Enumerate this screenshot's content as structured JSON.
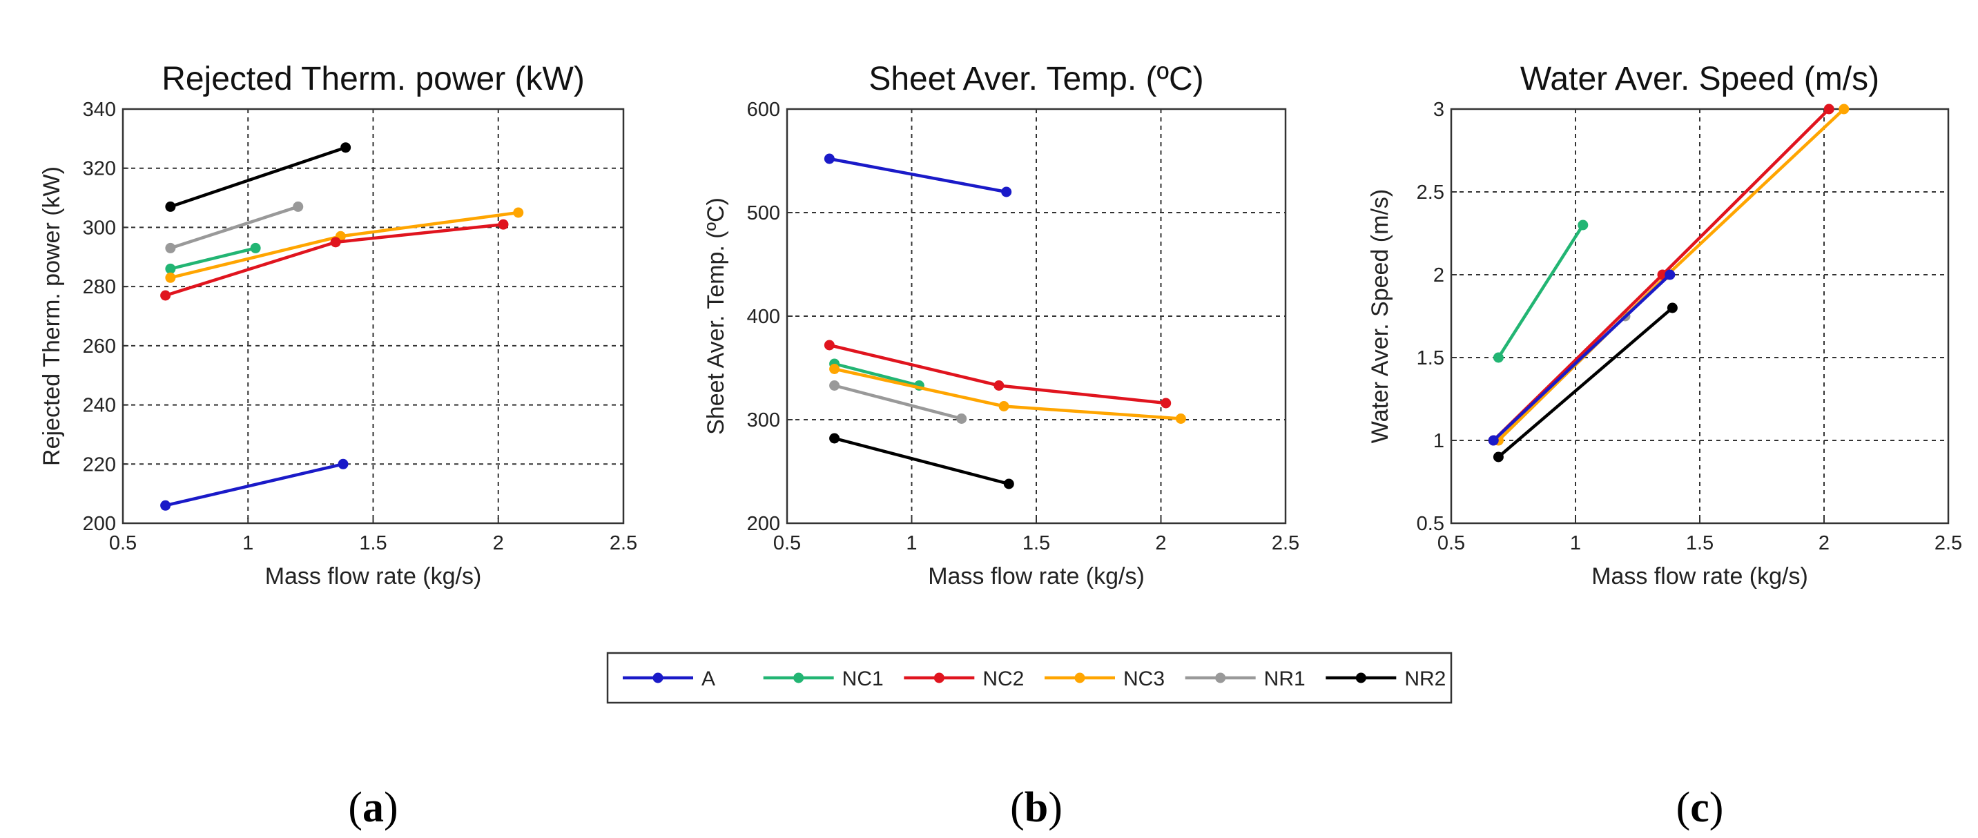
{
  "chart_data": [
    {
      "type": "line",
      "title": "Rejected Therm. power (kW)",
      "xlabel": "Mass flow rate (kg/s)",
      "ylabel": "Rejected Therm. power (kW)",
      "xlim": [
        0.5,
        2.5
      ],
      "ylim": [
        200,
        340
      ],
      "xticks": [
        "0.5",
        "1",
        "1.5",
        "2",
        "2.5"
      ],
      "yticks": [
        "200",
        "220",
        "240",
        "260",
        "280",
        "300",
        "320",
        "340"
      ],
      "xtick_values": [
        0.5,
        1,
        1.5,
        2,
        2.5
      ],
      "ytick_values": [
        200,
        220,
        240,
        260,
        280,
        300,
        320,
        340
      ],
      "grid": true,
      "panel_label": "a",
      "series": [
        {
          "name": "A",
          "x": [
            0.67,
            1.38
          ],
          "y": [
            206,
            220
          ]
        },
        {
          "name": "NC1",
          "x": [
            0.69,
            1.03
          ],
          "y": [
            286,
            293
          ]
        },
        {
          "name": "NC2",
          "x": [
            0.67,
            1.35,
            2.02
          ],
          "y": [
            277,
            295,
            301
          ]
        },
        {
          "name": "NC3",
          "x": [
            0.69,
            1.37,
            2.08
          ],
          "y": [
            283,
            297,
            305
          ]
        },
        {
          "name": "NR1",
          "x": [
            0.69,
            1.2
          ],
          "y": [
            293,
            307
          ]
        },
        {
          "name": "NR2",
          "x": [
            0.69,
            1.39
          ],
          "y": [
            307,
            327
          ]
        }
      ]
    },
    {
      "type": "line",
      "title": "Sheet Aver. Temp. (ºC)",
      "xlabel": "Mass flow rate (kg/s)",
      "ylabel": "Sheet Aver. Temp. (ºC)",
      "xlim": [
        0.5,
        2.5
      ],
      "ylim": [
        200,
        600
      ],
      "xticks": [
        "0.5",
        "1",
        "1.5",
        "2",
        "2.5"
      ],
      "yticks": [
        "200",
        "300",
        "400",
        "500",
        "600"
      ],
      "xtick_values": [
        0.5,
        1,
        1.5,
        2,
        2.5
      ],
      "ytick_values": [
        200,
        300,
        400,
        500,
        600
      ],
      "grid": true,
      "panel_label": "b",
      "series": [
        {
          "name": "A",
          "x": [
            0.67,
            1.38
          ],
          "y": [
            552,
            520
          ]
        },
        {
          "name": "NC1",
          "x": [
            0.69,
            1.03
          ],
          "y": [
            354,
            333
          ]
        },
        {
          "name": "NC2",
          "x": [
            0.67,
            1.35,
            2.02
          ],
          "y": [
            372,
            333,
            316
          ]
        },
        {
          "name": "NC3",
          "x": [
            0.69,
            1.37,
            2.08
          ],
          "y": [
            349,
            313,
            301
          ]
        },
        {
          "name": "NR1",
          "x": [
            0.69,
            1.2
          ],
          "y": [
            333,
            301
          ]
        },
        {
          "name": "NR2",
          "x": [
            0.69,
            1.39
          ],
          "y": [
            282,
            238
          ]
        }
      ]
    },
    {
      "type": "line",
      "title": "Water Aver. Speed (m/s)",
      "xlabel": "Mass flow rate (kg/s)",
      "ylabel": "Water Aver. Speed (m/s)",
      "xlim": [
        0.5,
        2.5
      ],
      "ylim": [
        0.5,
        3
      ],
      "xticks": [
        "0.5",
        "1",
        "1.5",
        "2",
        "2.5"
      ],
      "yticks": [
        "0.5",
        "1",
        "1.5",
        "2",
        "2.5",
        "3"
      ],
      "xtick_values": [
        0.5,
        1,
        1.5,
        2,
        2.5
      ],
      "ytick_values": [
        0.5,
        1,
        1.5,
        2,
        2.5,
        3
      ],
      "grid": true,
      "panel_label": "c",
      "series": [
        {
          "name": "A",
          "x": [
            0.67,
            1.38
          ],
          "y": [
            1.0,
            2.0
          ]
        },
        {
          "name": "NC1",
          "x": [
            0.69,
            1.03
          ],
          "y": [
            1.5,
            2.3
          ]
        },
        {
          "name": "NC2",
          "x": [
            0.67,
            1.35,
            2.02
          ],
          "y": [
            1.0,
            2.0,
            3.0
          ]
        },
        {
          "name": "NC3",
          "x": [
            0.69,
            1.37,
            2.08
          ],
          "y": [
            1.0,
            2.0,
            3.0
          ]
        },
        {
          "name": "NR1",
          "x": [
            0.69,
            1.2
          ],
          "y": [
            1.0,
            1.75
          ]
        },
        {
          "name": "NR2",
          "x": [
            0.69,
            1.39
          ],
          "y": [
            0.9,
            1.8
          ]
        }
      ]
    }
  ],
  "legend": {
    "position": "bottom-center",
    "entries": [
      {
        "name": "A",
        "color": "#1a1ac8"
      },
      {
        "name": "NC1",
        "color": "#22b573"
      },
      {
        "name": "NC2",
        "color": "#e0141e"
      },
      {
        "name": "NC3",
        "color": "#ffa500"
      },
      {
        "name": "NR1",
        "color": "#999999"
      },
      {
        "name": "NR2",
        "color": "#000000"
      }
    ]
  },
  "series_draw_order": [
    "NR1",
    "NC1",
    "NC3",
    "NC2",
    "A",
    "NR2"
  ]
}
